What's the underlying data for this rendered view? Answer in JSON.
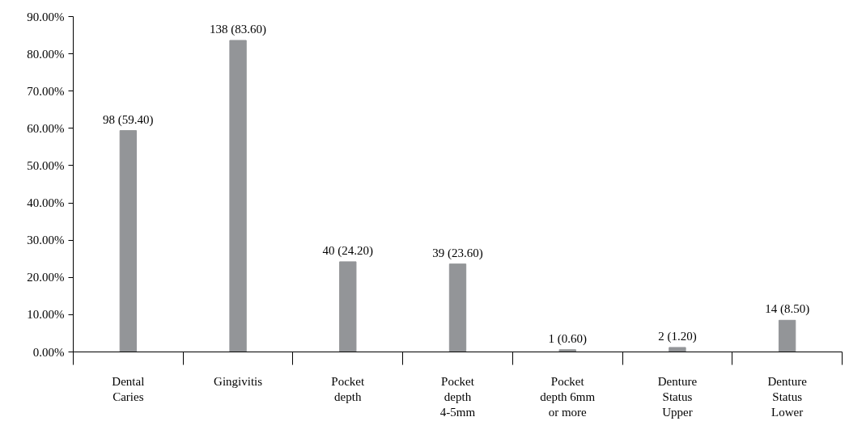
{
  "chart_data": {
    "type": "bar",
    "categories": [
      "Dental Caries",
      "Gingivitis",
      "Pocket depth",
      "Pocket depth 4-5mm",
      "Pocket depth 6mm or more",
      "Denture Status Upper",
      "Denture Status Lower"
    ],
    "values": [
      59.4,
      83.6,
      24.2,
      23.6,
      0.6,
      1.2,
      8.5
    ],
    "value_labels": [
      "98 (59.40)",
      "138 (83.60)",
      "40 (24.20)",
      "39 (23.60)",
      "1 (0.60)",
      "2 (1.20)",
      "14 (8.50)"
    ],
    "color": "#939598",
    "ylim": [
      0,
      90
    ],
    "yticks": [
      {
        "value": 0,
        "label": "0.00%"
      },
      {
        "value": 10,
        "label": "10.00%"
      },
      {
        "value": 20,
        "label": "20.00%"
      },
      {
        "value": 30,
        "label": "30.00%"
      },
      {
        "value": 40,
        "label": "40.00%"
      },
      {
        "value": 50,
        "label": "50.00%"
      },
      {
        "value": 60,
        "label": "60.00%"
      },
      {
        "value": 70,
        "label": "70.00%"
      },
      {
        "value": 80,
        "label": "80.00%"
      },
      {
        "value": 90,
        "label": "90.00%"
      }
    ],
    "grid": false
  }
}
